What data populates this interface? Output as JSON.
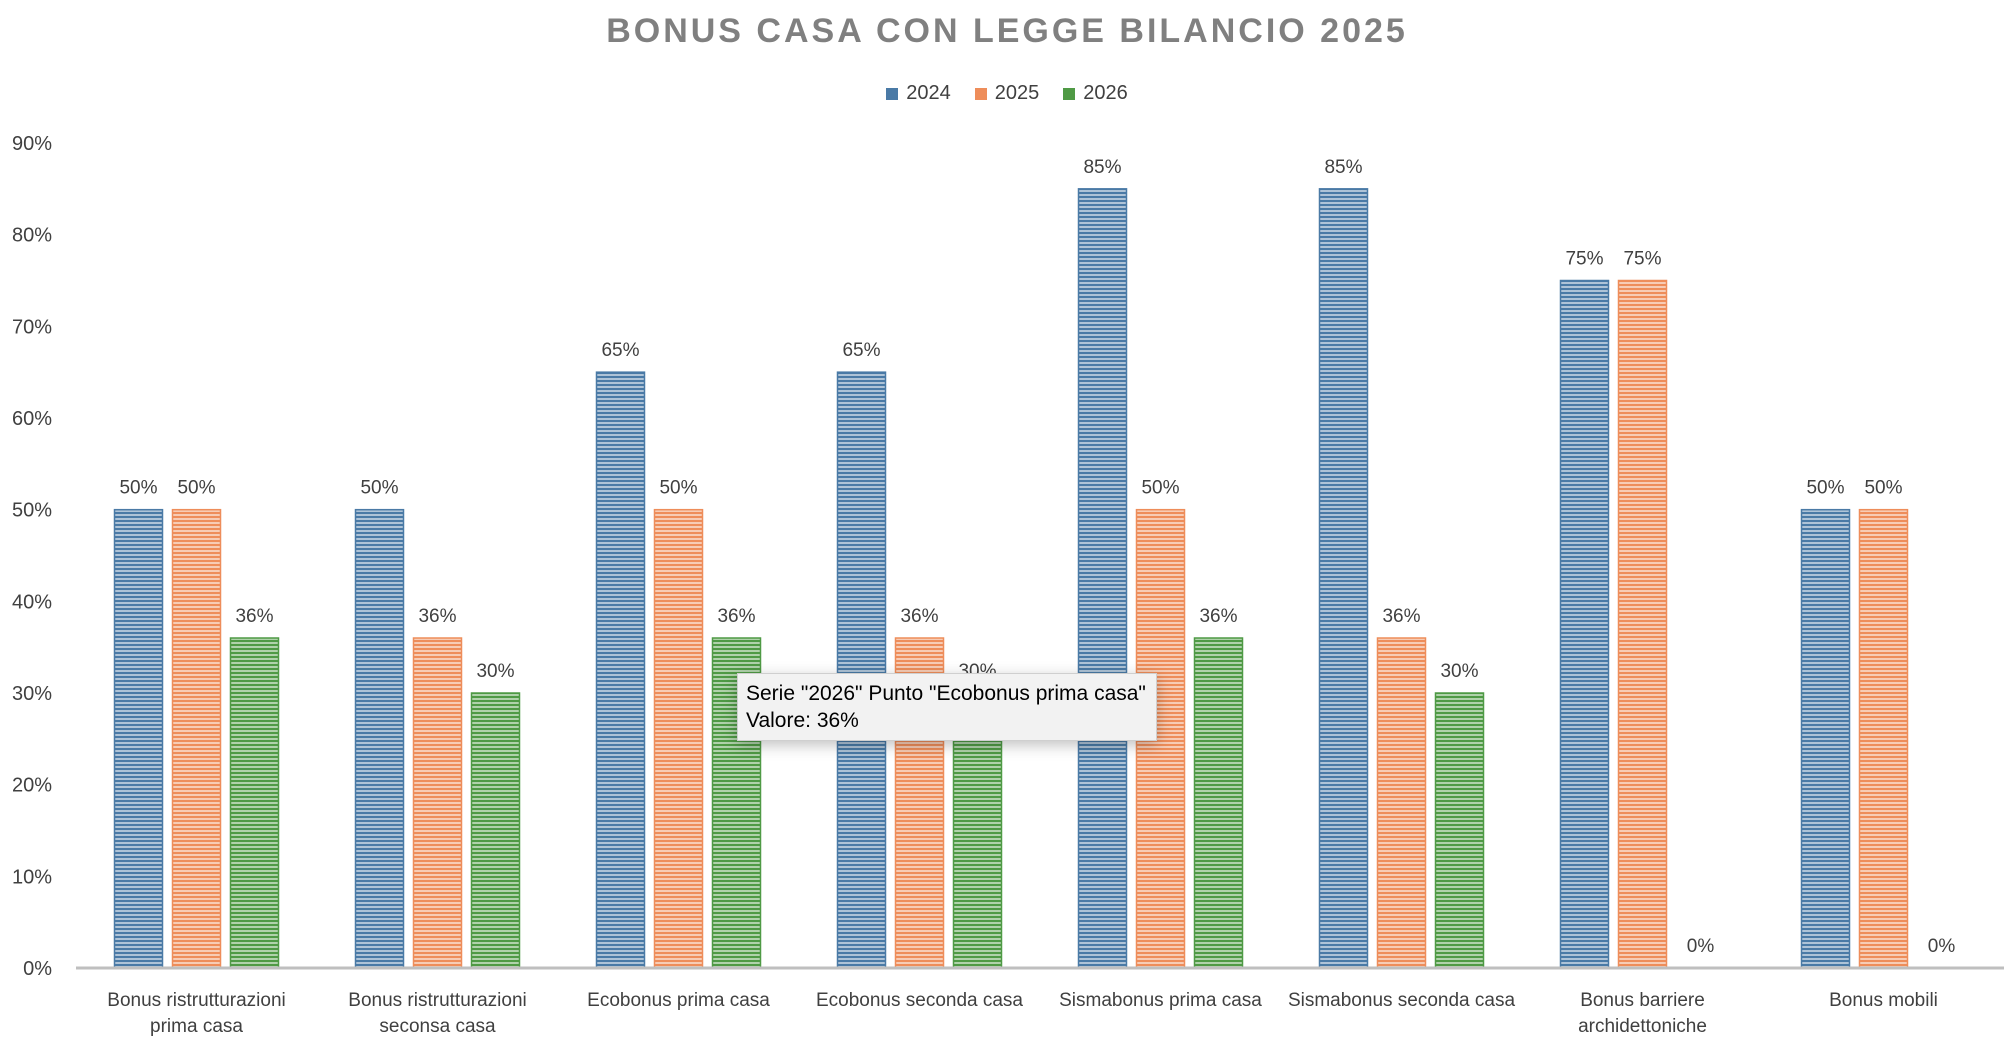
{
  "chart_data": {
    "type": "bar",
    "title": "BONUS CASA CON LEGGE BILANCIO 2025",
    "categories": [
      [
        "Bonus ristrutturazioni",
        "prima casa"
      ],
      [
        "Bonus ristrutturazioni",
        "seconsa casa"
      ],
      [
        "Ecobonus prima casa"
      ],
      [
        "Ecobonus seconda casa"
      ],
      [
        "Sismabonus prima casa"
      ],
      [
        "Sismabonus seconda casa"
      ],
      [
        "Bonus barriere",
        "archidettoniche"
      ],
      [
        "Bonus mobili"
      ]
    ],
    "series": [
      {
        "name": "2024",
        "color": "#4a7aa6",
        "values": [
          50,
          50,
          65,
          65,
          85,
          85,
          75,
          50
        ]
      },
      {
        "name": "2025",
        "color": "#ee8d5a",
        "values": [
          50,
          36,
          50,
          36,
          50,
          36,
          75,
          50
        ]
      },
      {
        "name": "2026",
        "color": "#4f9a45",
        "values": [
          36,
          30,
          36,
          30,
          36,
          30,
          0,
          0
        ]
      }
    ],
    "data_labels": [
      [
        "50%",
        "50%",
        "65%",
        "65%",
        "85%",
        "85%",
        "75%",
        "50%"
      ],
      [
        "50%",
        "36%",
        "50%",
        "36%",
        "50%",
        "36%",
        "75%",
        "50%"
      ],
      [
        "36%",
        "30%",
        "36%",
        "30%",
        "36%",
        "30%",
        "0%",
        "0%"
      ]
    ],
    "y_ticks": [
      "0%",
      "10%",
      "20%",
      "30%",
      "40%",
      "50%",
      "60%",
      "70%",
      "80%",
      "90%"
    ],
    "ylim": [
      0,
      90
    ],
    "legend_position": "top",
    "grid": false
  },
  "tooltip": {
    "line1": "Serie \"2026\" Punto \"Ecobonus prima casa\"",
    "line2": "Valore: 36%"
  }
}
